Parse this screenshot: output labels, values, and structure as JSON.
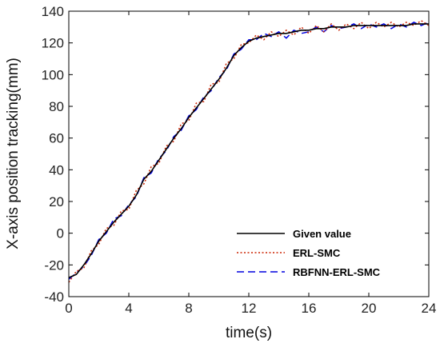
{
  "chart_data": {
    "type": "line",
    "xlabel": "time(s)",
    "ylabel": "X-axis position tracking(mm)",
    "xlim": [
      0,
      24
    ],
    "ylim": [
      -40,
      140
    ],
    "xticks": [
      0,
      4,
      8,
      12,
      16,
      20,
      24
    ],
    "yticks": [
      -40,
      -20,
      0,
      20,
      40,
      60,
      80,
      100,
      120,
      140
    ],
    "legend_position": "bottom-right",
    "grid": false,
    "series": [
      {
        "name": "Given value",
        "color": "#000000",
        "style": "solid",
        "x": [
          0,
          0.5,
          1,
          1.5,
          2,
          2.5,
          3,
          3.5,
          4,
          4.5,
          5,
          5.5,
          6,
          6.5,
          7,
          7.5,
          8,
          8.5,
          9,
          9.5,
          10,
          10.5,
          11,
          11.5,
          12,
          12.5,
          13,
          13.5,
          14,
          14.5,
          15,
          15.5,
          16,
          16.5,
          17,
          17.5,
          18,
          18.5,
          19,
          19.5,
          20,
          20.5,
          21,
          21.5,
          22,
          22.5,
          23,
          23.5,
          24
        ],
        "y": [
          -28,
          -26,
          -20,
          -13,
          -5,
          1,
          7,
          12,
          17,
          24,
          34,
          39,
          46,
          53,
          60,
          66,
          73,
          79,
          85,
          91,
          97,
          104,
          112,
          117,
          121,
          123,
          124,
          125,
          126,
          126,
          127,
          128,
          128,
          129,
          129,
          130,
          130,
          130,
          131,
          131,
          131,
          131,
          131,
          131,
          131,
          131,
          132,
          132,
          132
        ]
      },
      {
        "name": "ERL-SMC",
        "color": "#cc2200",
        "style": "dotted",
        "x": [
          0,
          0.5,
          1,
          1.5,
          2,
          2.5,
          3,
          3.5,
          4,
          4.5,
          5,
          5.5,
          6,
          6.5,
          7,
          7.5,
          8,
          8.5,
          9,
          9.5,
          10,
          10.5,
          11,
          11.5,
          12,
          12.5,
          13,
          13.5,
          14,
          14.5,
          15,
          15.5,
          16,
          16.5,
          17,
          17.5,
          18,
          18.5,
          19,
          19.5,
          20,
          20.5,
          21,
          21.5,
          22,
          22.5,
          23,
          23.5,
          24
        ],
        "y": [
          -31,
          -24,
          -22,
          -11,
          -7,
          3,
          5,
          14,
          15,
          27,
          31,
          42,
          44,
          55,
          58,
          69,
          71,
          82,
          83,
          94,
          95,
          107,
          110,
          119,
          120,
          125,
          122,
          127,
          124,
          128,
          125,
          130,
          126,
          131,
          127,
          132,
          128,
          132,
          129,
          133,
          129,
          133,
          130,
          133,
          130,
          133,
          131,
          134,
          131
        ]
      },
      {
        "name": "RBFNN-ERL-SMC",
        "color": "#0000dd",
        "style": "dashed",
        "x": [
          0,
          0.5,
          1,
          1.5,
          2,
          2.5,
          3,
          3.5,
          4,
          4.5,
          5,
          5.5,
          6,
          6.5,
          7,
          7.5,
          8,
          8.5,
          9,
          9.5,
          10,
          10.5,
          11,
          11.5,
          12,
          12.5,
          13,
          13.5,
          14,
          14.5,
          15,
          15.5,
          16,
          16.5,
          17,
          17.5,
          18,
          18.5,
          19,
          19.5,
          20,
          20.5,
          21,
          21.5,
          22,
          22.5,
          23,
          23.5,
          24
        ],
        "y": [
          -29,
          -25,
          -21,
          -14,
          -4,
          0,
          9,
          11,
          18,
          23,
          35,
          38,
          47,
          52,
          61,
          65,
          74,
          78,
          86,
          90,
          98,
          103,
          113,
          116,
          122,
          122,
          126,
          124,
          127,
          123,
          128,
          126,
          127,
          130,
          127,
          131,
          129,
          130,
          132,
          129,
          132,
          130,
          132,
          129,
          132,
          130,
          133,
          131,
          133
        ]
      }
    ]
  }
}
